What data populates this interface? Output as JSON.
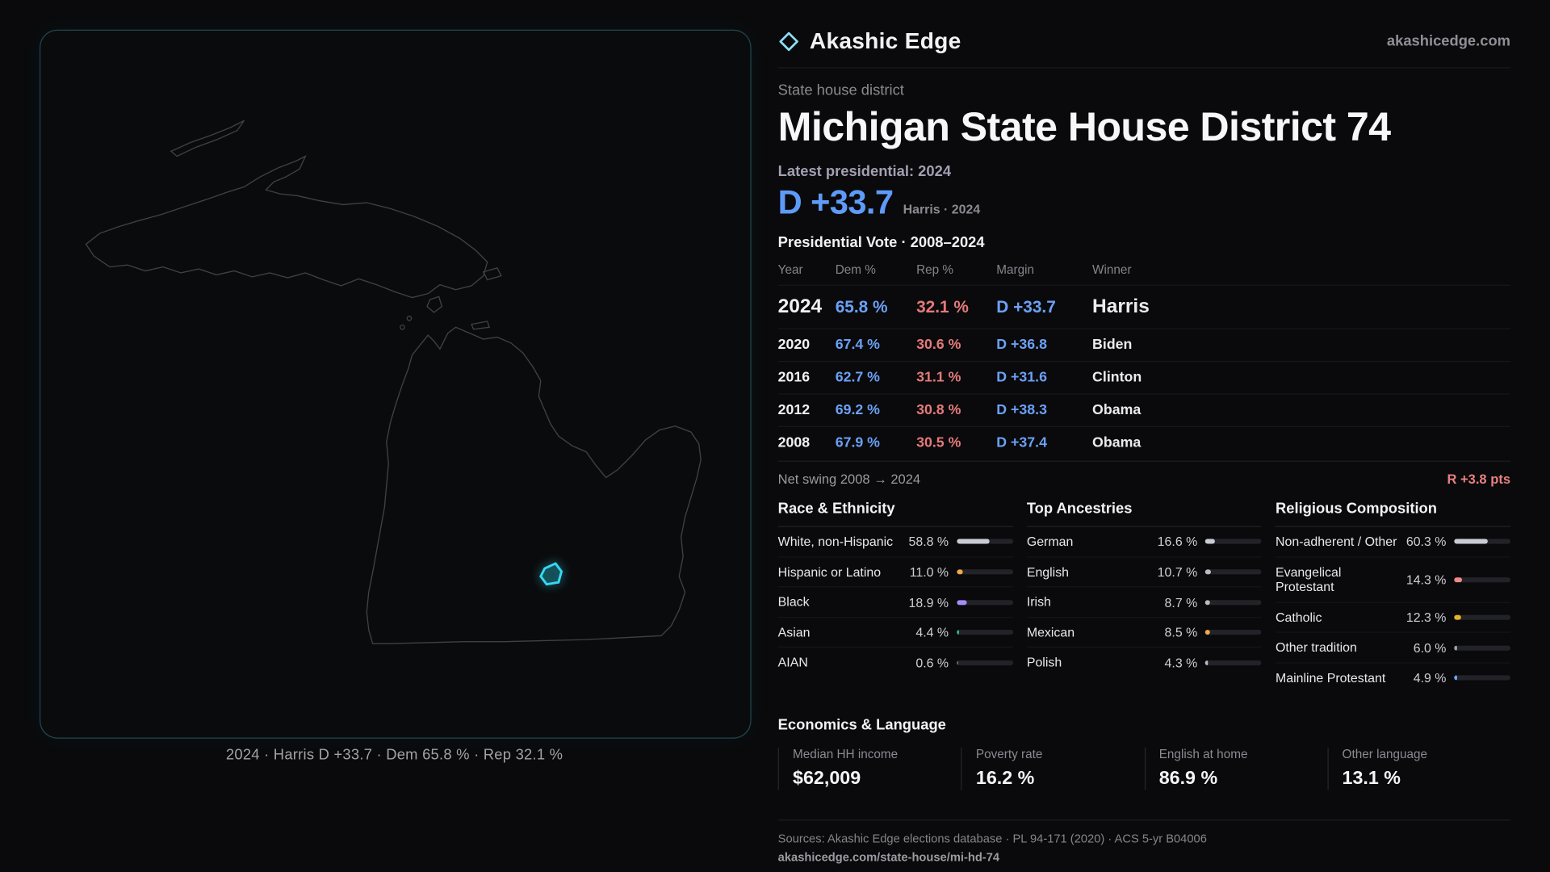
{
  "brand": {
    "name": "Akashic Edge",
    "domain": "akashicedge.com"
  },
  "colors": {
    "accent_cyan": "#35d8f2",
    "dem_blue": "#6ba1f7",
    "rep_red": "#e57a7a"
  },
  "map": {
    "caption": "2024 · Harris D +33.7 · Dem 65.8 % · Rep 32.1 %",
    "highlight_color": "#35d8f2"
  },
  "district": {
    "kicker": "State house district",
    "title": "Michigan State House District 74",
    "latest_label": "Latest presidential: 2024",
    "headline_margin": "D +33.7",
    "headline_detail": "Harris · 2024"
  },
  "vote_table": {
    "title": "Presidential Vote · 2008–2024",
    "columns": [
      "Year",
      "Dem %",
      "Rep %",
      "Margin",
      "Winner"
    ],
    "rows": [
      {
        "year": "2024",
        "dem": "65.8 %",
        "rep": "32.1 %",
        "margin": "D +33.7",
        "winner": "Harris"
      },
      {
        "year": "2020",
        "dem": "67.4 %",
        "rep": "30.6 %",
        "margin": "D +36.8",
        "winner": "Biden"
      },
      {
        "year": "2016",
        "dem": "62.7 %",
        "rep": "31.1 %",
        "margin": "D +31.6",
        "winner": "Clinton"
      },
      {
        "year": "2012",
        "dem": "69.2 %",
        "rep": "30.8 %",
        "margin": "D +38.3",
        "winner": "Obama"
      },
      {
        "year": "2008",
        "dem": "67.9 %",
        "rep": "30.5 %",
        "margin": "D +37.4",
        "winner": "Obama"
      }
    ]
  },
  "swing": {
    "label": "Net swing 2008 → 2024",
    "value": "R +3.8 pts"
  },
  "demographics": [
    {
      "title": "Race & Ethnicity",
      "items": [
        {
          "label": "White, non-Hispanic",
          "value": "58.8 %",
          "pct": 58.8,
          "color": "#c9ccd4"
        },
        {
          "label": "Hispanic or Latino",
          "value": "11.0 %",
          "pct": 11.0,
          "color": "#f2a64e"
        },
        {
          "label": "Black",
          "value": "18.9 %",
          "pct": 18.9,
          "color": "#a78bfa"
        },
        {
          "label": "Asian",
          "value": "4.4 %",
          "pct": 4.4,
          "color": "#34d399"
        },
        {
          "label": "AIAN",
          "value": "0.6 %",
          "pct": 0.6,
          "color": "#9ca3af"
        }
      ]
    },
    {
      "title": "Top Ancestries",
      "items": [
        {
          "label": "German",
          "value": "16.6 %",
          "pct": 16.6,
          "color": "#c9ccd4"
        },
        {
          "label": "English",
          "value": "10.7 %",
          "pct": 10.7,
          "color": "#b9bcc4"
        },
        {
          "label": "Irish",
          "value": "8.7 %",
          "pct": 8.7,
          "color": "#b9bcc4"
        },
        {
          "label": "Mexican",
          "value": "8.5 %",
          "pct": 8.5,
          "color": "#f2a64e"
        },
        {
          "label": "Polish",
          "value": "4.3 %",
          "pct": 4.3,
          "color": "#b9bcc4"
        }
      ]
    },
    {
      "title": "Religious Composition",
      "items": [
        {
          "label": "Non-adherent / Other",
          "value": "60.3 %",
          "pct": 60.3,
          "color": "#c9ccd4"
        },
        {
          "label": "Evangelical Protestant",
          "value": "14.3 %",
          "pct": 14.3,
          "color": "#ef8a8a"
        },
        {
          "label": "Catholic",
          "value": "12.3 %",
          "pct": 12.3,
          "color": "#e6b323"
        },
        {
          "label": "Other tradition",
          "value": "6.0 %",
          "pct": 6.0,
          "color": "#9ca3af"
        },
        {
          "label": "Mainline Protestant",
          "value": "4.9 %",
          "pct": 4.9,
          "color": "#6ea8fe"
        }
      ]
    }
  ],
  "economics": {
    "title": "Economics & Language",
    "stats": [
      {
        "label": "Median HH income",
        "value": "$62,009"
      },
      {
        "label": "Poverty rate",
        "value": "16.2 %"
      },
      {
        "label": "English at home",
        "value": "86.9 %"
      },
      {
        "label": "Other language",
        "value": "13.1 %"
      }
    ]
  },
  "footer": {
    "sources": "Sources: Akashic Edge elections database · PL 94-171 (2020) · ACS 5-yr B04006",
    "url": "akashicedge.com/state-house/mi-hd-74"
  }
}
